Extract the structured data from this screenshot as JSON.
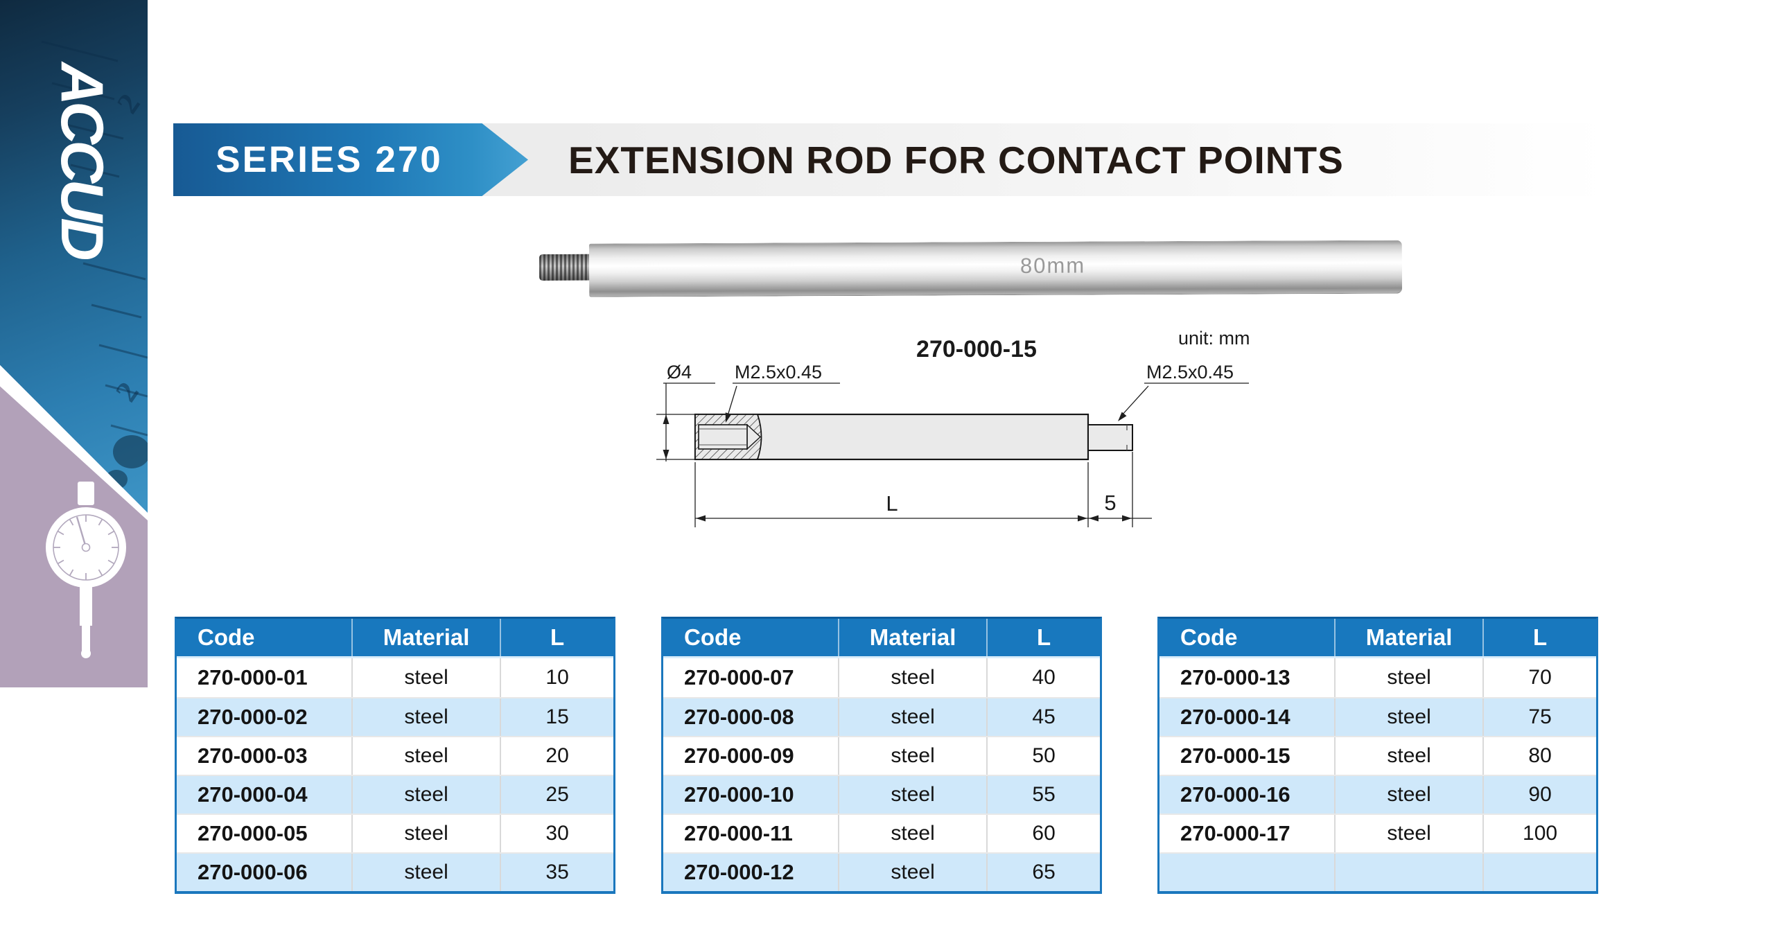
{
  "brand": {
    "logo_text": "ACCUD"
  },
  "sidebar": {
    "ruler_digit": "2"
  },
  "header": {
    "series_label": "SERIES 270",
    "title": "EXTENSION ROD FOR CONTACT POINTS"
  },
  "photo": {
    "engraving": "80mm"
  },
  "drawing": {
    "part_code": "270-000-15",
    "unit_note": "unit: mm",
    "dim_diameter": "Ø4",
    "thread_left": "M2.5x0.45",
    "thread_right": "M2.5x0.45",
    "dim_length_label": "L",
    "dim_tip_length": "5"
  },
  "tables": [
    {
      "columns": [
        "Code",
        "Material",
        "L"
      ],
      "rows": [
        [
          "270-000-01",
          "steel",
          "10"
        ],
        [
          "270-000-02",
          "steel",
          "15"
        ],
        [
          "270-000-03",
          "steel",
          "20"
        ],
        [
          "270-000-04",
          "steel",
          "25"
        ],
        [
          "270-000-05",
          "steel",
          "30"
        ],
        [
          "270-000-06",
          "steel",
          "35"
        ]
      ]
    },
    {
      "columns": [
        "Code",
        "Material",
        "L"
      ],
      "rows": [
        [
          "270-000-07",
          "steel",
          "40"
        ],
        [
          "270-000-08",
          "steel",
          "45"
        ],
        [
          "270-000-09",
          "steel",
          "50"
        ],
        [
          "270-000-10",
          "steel",
          "55"
        ],
        [
          "270-000-11",
          "steel",
          "60"
        ],
        [
          "270-000-12",
          "steel",
          "65"
        ]
      ]
    },
    {
      "columns": [
        "Code",
        "Material",
        "L"
      ],
      "rows": [
        [
          "270-000-13",
          "steel",
          "70"
        ],
        [
          "270-000-14",
          "steel",
          "75"
        ],
        [
          "270-000-15",
          "steel",
          "80"
        ],
        [
          "270-000-16",
          "steel",
          "90"
        ],
        [
          "270-000-17",
          "steel",
          "100"
        ],
        [
          "",
          "",
          ""
        ]
      ]
    }
  ],
  "colors": {
    "accent_blue": "#1878be",
    "banner_blue_dark": "#175a94",
    "banner_blue_light": "#44a0d2",
    "row_alt_blue": "#cfe8fa",
    "sidebar_purple": "#b2a1b9",
    "title_text": "#231a15"
  }
}
